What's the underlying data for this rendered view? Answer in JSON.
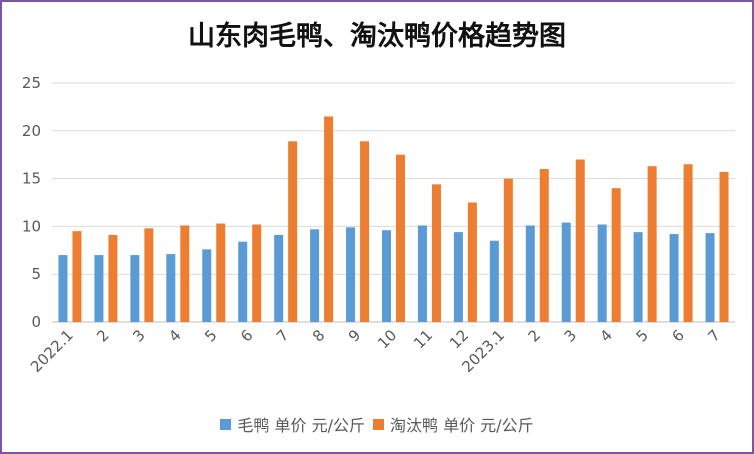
{
  "chart_data": {
    "type": "bar",
    "title": "山东肉毛鸭、淘汰鸭价格趋势图",
    "categories": [
      "2022.1",
      "2",
      "3",
      "4",
      "5",
      "6",
      "7",
      "8",
      "9",
      "10",
      "11",
      "12",
      "2023.1",
      "2",
      "3",
      "4",
      "5",
      "6",
      "7"
    ],
    "series": [
      {
        "name": "毛鸭 单价 元/公斤",
        "color": "#5b9bd5",
        "values": [
          7.0,
          7.0,
          7.0,
          7.1,
          7.6,
          8.4,
          9.1,
          9.7,
          9.9,
          9.6,
          10.1,
          9.4,
          8.5,
          10.1,
          10.4,
          10.2,
          9.4,
          9.2,
          9.3
        ]
      },
      {
        "name": "淘汰鸭 单价 元/公斤",
        "color": "#ed7d31",
        "values": [
          9.5,
          9.1,
          9.8,
          10.1,
          10.3,
          10.2,
          18.9,
          21.5,
          18.9,
          17.5,
          14.4,
          12.5,
          15.0,
          16.0,
          17.0,
          14.0,
          16.3,
          16.5,
          15.7
        ]
      }
    ],
    "ylim": [
      0,
      25
    ],
    "yticks": [
      0,
      5,
      10,
      15,
      20,
      25
    ],
    "grid": true,
    "legend": "bottom"
  }
}
